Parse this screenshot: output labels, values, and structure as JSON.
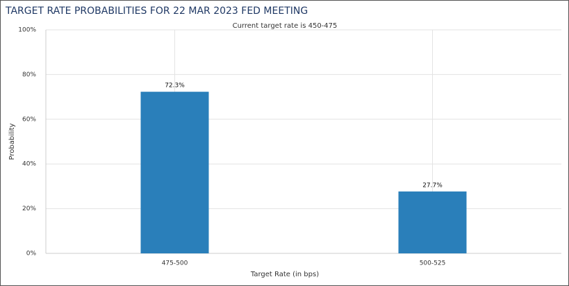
{
  "chart_data": {
    "type": "bar",
    "title": "TARGET RATE PROBABILITIES FOR 22 MAR 2023 FED MEETING",
    "subtitle": "Current target rate is 450-475",
    "x_label": "Target Rate (in bps)",
    "y_label": "Probability",
    "categories": [
      "475-500",
      "500-525"
    ],
    "values": [
      72.3,
      27.7
    ],
    "value_labels": [
      "72.3%",
      "27.7%"
    ],
    "color": "#2a7fba",
    "ylim": [
      0,
      100
    ],
    "yticks": [
      {
        "value": 0,
        "label": "0%"
      },
      {
        "value": 20,
        "label": "20%"
      },
      {
        "value": 40,
        "label": "40%"
      },
      {
        "value": 60,
        "label": "60%"
      },
      {
        "value": 80,
        "label": "80%"
      },
      {
        "value": 100,
        "label": "100%"
      }
    ],
    "grid": true
  }
}
